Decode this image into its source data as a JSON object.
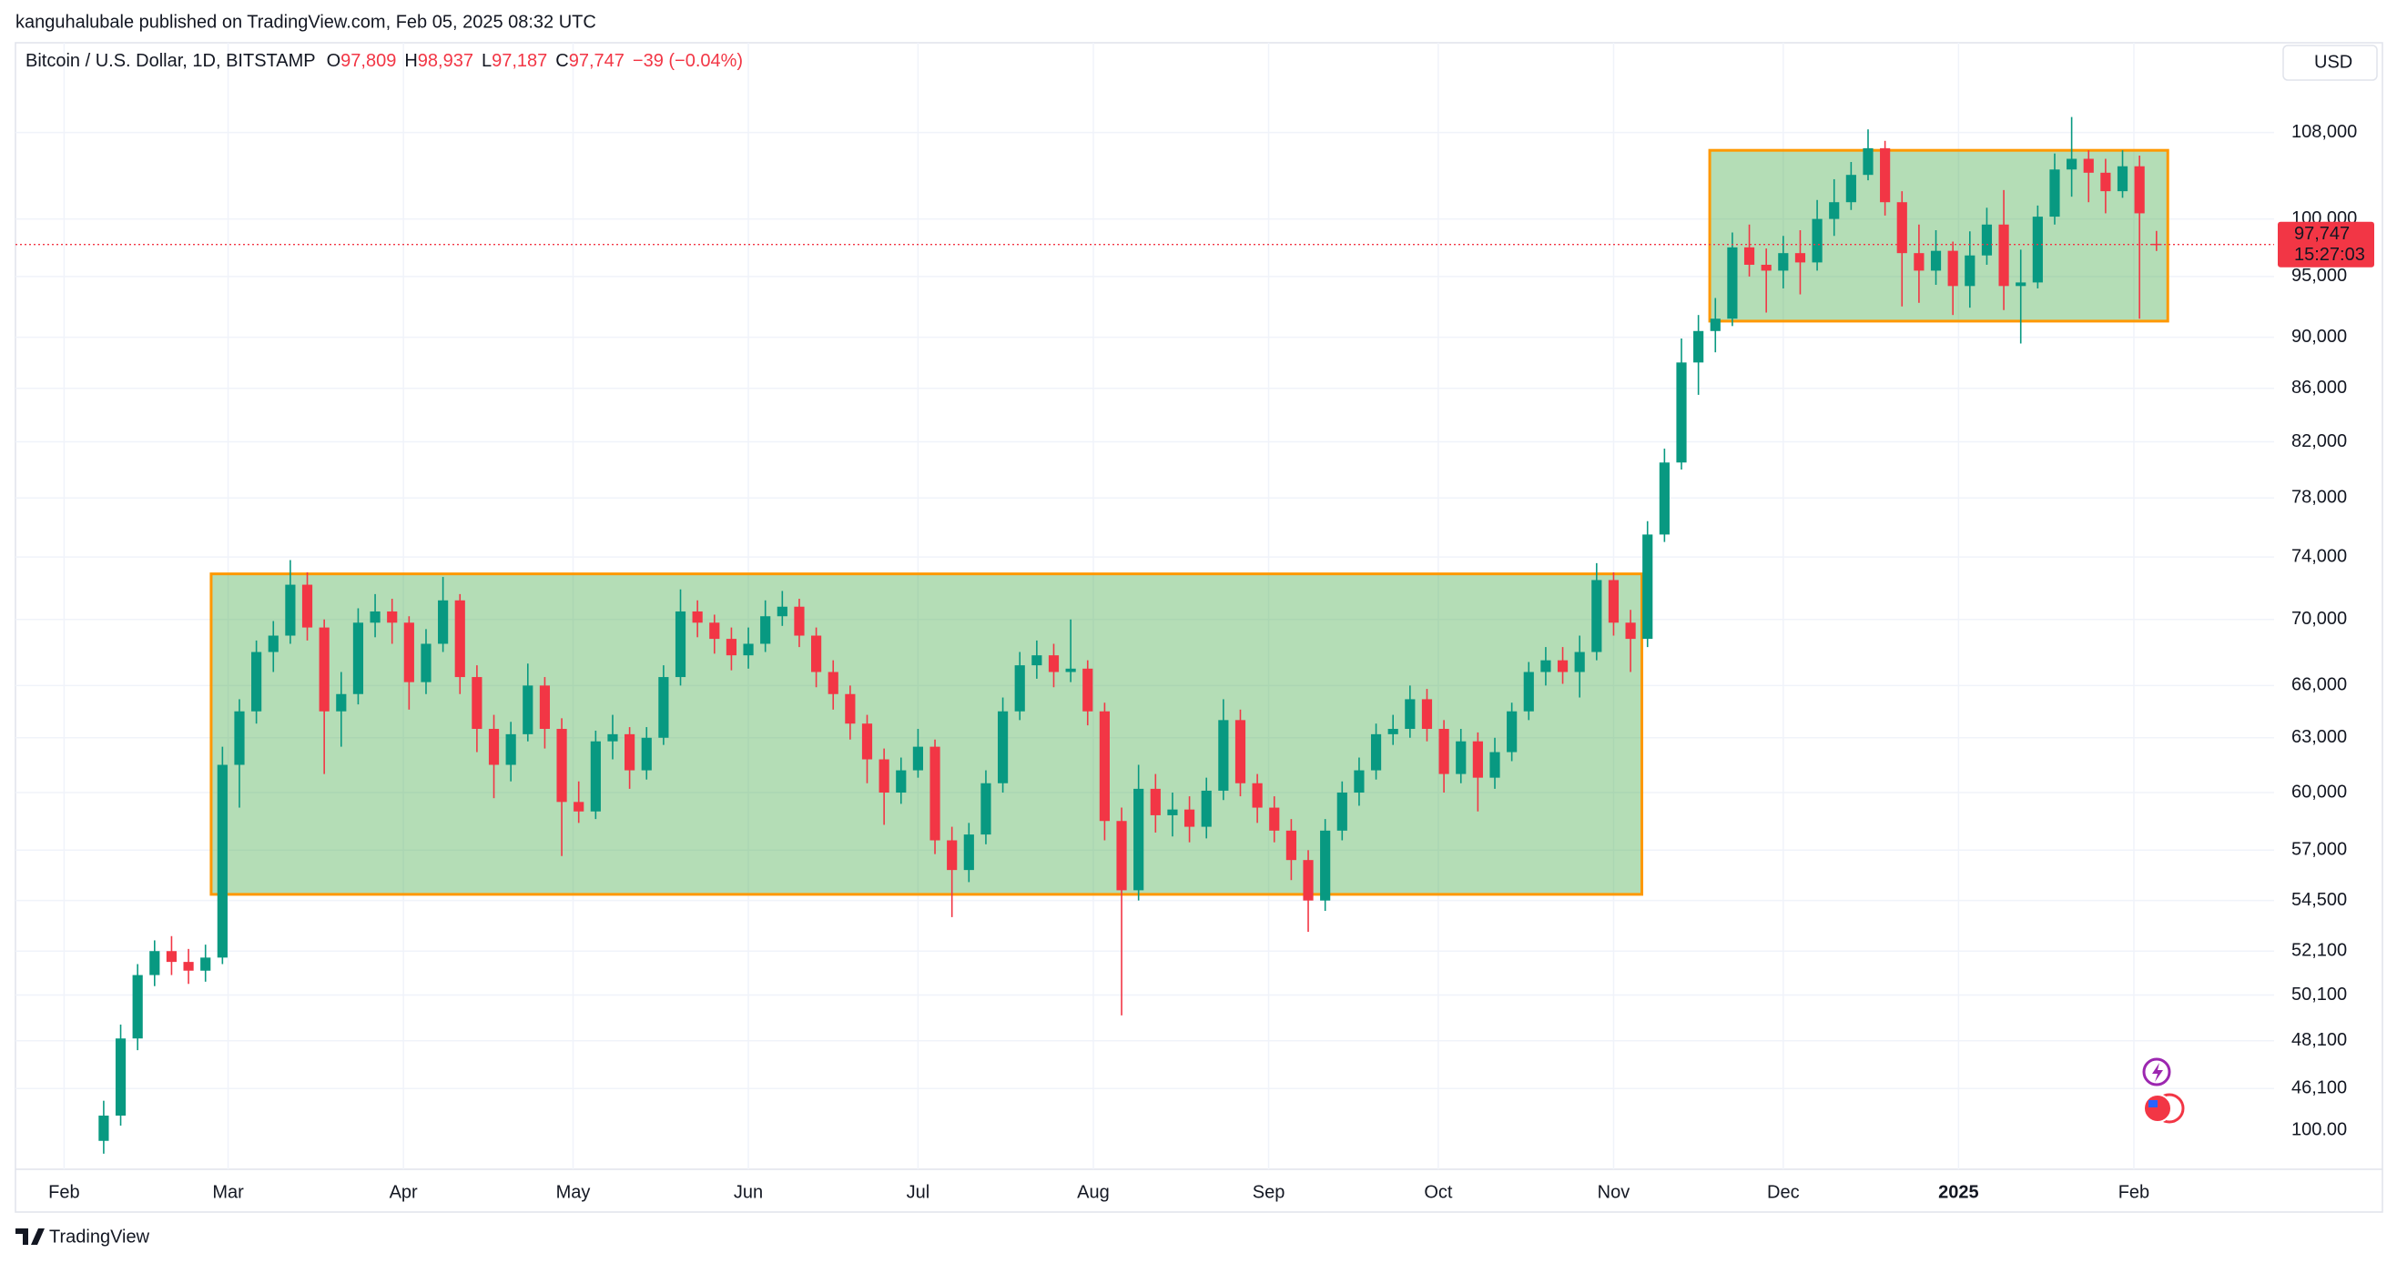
{
  "chart_data": {
    "type": "candlestick",
    "published": "kanguhalubale published on TradingView.com, Feb 05, 2025 08:32 UTC",
    "title": "Bitcoin / U.S. Dollar, 1D, BITSTAMP",
    "ohlc_legend": [
      {
        "key": "O",
        "value": "97,809"
      },
      {
        "key": "H",
        "value": "98,937"
      },
      {
        "key": "L",
        "value": "97,187"
      },
      {
        "key": "C",
        "value": "97,747"
      }
    ],
    "change": "−39 (−0.04%)",
    "currency": "USD",
    "brand": "TradingView",
    "log_scale": true,
    "grid": true,
    "up_color": "#089981",
    "down_color": "#f23645",
    "x": [
      7,
      10,
      13,
      16,
      19,
      22,
      25,
      28,
      31,
      34,
      37,
      40,
      43,
      46,
      49,
      52,
      55,
      58,
      61,
      64,
      67,
      70,
      73,
      76,
      79,
      82,
      85,
      88,
      91,
      94,
      97,
      100,
      103,
      106,
      109,
      112,
      115,
      118,
      121,
      124,
      127,
      130,
      133,
      136,
      139,
      142,
      145,
      148,
      151,
      154,
      157,
      160,
      163,
      166,
      169,
      172,
      175,
      178,
      181,
      184,
      187,
      190,
      193,
      196,
      199,
      202,
      205,
      208,
      211,
      214,
      217,
      220,
      223,
      226,
      229,
      232,
      235,
      238,
      241,
      244,
      247,
      250,
      253,
      256,
      259,
      262,
      265,
      268,
      271,
      274,
      277,
      280,
      283,
      286,
      289,
      292,
      295,
      298,
      301,
      304,
      307,
      310,
      313,
      316,
      319,
      322,
      325,
      328,
      331,
      334,
      337,
      340,
      343,
      346,
      349,
      352,
      355,
      358,
      361,
      364,
      367,
      370
    ],
    "ohlc": [
      [
        44000,
        45600,
        43500,
        45000
      ],
      [
        45000,
        48800,
        44600,
        48200
      ],
      [
        48200,
        51500,
        47700,
        51000
      ],
      [
        51000,
        52600,
        50500,
        52100
      ],
      [
        52100,
        52800,
        51000,
        51600
      ],
      [
        51600,
        52200,
        50600,
        51200
      ],
      [
        51200,
        52400,
        50700,
        51800
      ],
      [
        51800,
        62500,
        51500,
        61500
      ],
      [
        61500,
        65200,
        59200,
        64500
      ],
      [
        64500,
        68700,
        63800,
        68000
      ],
      [
        68000,
        69900,
        66800,
        69000
      ],
      [
        69000,
        73800,
        68500,
        72200
      ],
      [
        72200,
        73000,
        68700,
        69500
      ],
      [
        69500,
        70000,
        61000,
        64500
      ],
      [
        64500,
        66800,
        62500,
        65500
      ],
      [
        65500,
        70700,
        64900,
        69800
      ],
      [
        69800,
        71600,
        68900,
        70500
      ],
      [
        70500,
        71300,
        68500,
        69800
      ],
      [
        69800,
        70200,
        64600,
        66200
      ],
      [
        66200,
        69400,
        65500,
        68500
      ],
      [
        68500,
        72700,
        68000,
        71200
      ],
      [
        71200,
        71600,
        65500,
        66500
      ],
      [
        66500,
        67200,
        62200,
        63500
      ],
      [
        63500,
        64300,
        59700,
        61500
      ],
      [
        61500,
        63900,
        60600,
        63200
      ],
      [
        63200,
        67300,
        62800,
        66000
      ],
      [
        66000,
        66500,
        62400,
        63500
      ],
      [
        63500,
        64100,
        56700,
        59500
      ],
      [
        59500,
        60600,
        58400,
        59000
      ],
      [
        59000,
        63400,
        58600,
        62800
      ],
      [
        62800,
        64300,
        61800,
        63200
      ],
      [
        63200,
        63600,
        60200,
        61200
      ],
      [
        61200,
        63600,
        60700,
        63000
      ],
      [
        63000,
        67200,
        62600,
        66500
      ],
      [
        66500,
        71900,
        66000,
        70500
      ],
      [
        70500,
        71200,
        68900,
        69800
      ],
      [
        69800,
        70300,
        67900,
        68800
      ],
      [
        68800,
        69500,
        66900,
        67800
      ],
      [
        67800,
        69500,
        67000,
        68500
      ],
      [
        68500,
        71200,
        68000,
        70200
      ],
      [
        70200,
        71800,
        69600,
        70800
      ],
      [
        70800,
        71300,
        68300,
        69000
      ],
      [
        69000,
        69500,
        65900,
        66800
      ],
      [
        66800,
        67500,
        64600,
        65500
      ],
      [
        65500,
        66000,
        62900,
        63800
      ],
      [
        63800,
        64300,
        60500,
        61800
      ],
      [
        61800,
        62400,
        58300,
        60000
      ],
      [
        60000,
        61900,
        59400,
        61200
      ],
      [
        61200,
        63500,
        60800,
        62500
      ],
      [
        62500,
        62900,
        56800,
        57500
      ],
      [
        57500,
        58200,
        53700,
        56000
      ],
      [
        56000,
        58400,
        55400,
        57800
      ],
      [
        57800,
        61200,
        57300,
        60500
      ],
      [
        60500,
        65300,
        60000,
        64500
      ],
      [
        64500,
        68000,
        64000,
        67200
      ],
      [
        67200,
        68700,
        66400,
        67800
      ],
      [
        67800,
        68500,
        65900,
        66800
      ],
      [
        66800,
        70000,
        66200,
        67000
      ],
      [
        67000,
        67500,
        63700,
        64500
      ],
      [
        64500,
        65000,
        57500,
        58500
      ],
      [
        58500,
        59200,
        49200,
        55000
      ],
      [
        55000,
        61500,
        54500,
        60200
      ],
      [
        60200,
        61000,
        57900,
        58800
      ],
      [
        58800,
        60000,
        57700,
        59100
      ],
      [
        59100,
        59800,
        57400,
        58200
      ],
      [
        58200,
        60800,
        57600,
        60100
      ],
      [
        60100,
        65200,
        59600,
        64000
      ],
      [
        64000,
        64600,
        59800,
        60500
      ],
      [
        60500,
        61000,
        58400,
        59200
      ],
      [
        59200,
        59800,
        57400,
        58000
      ],
      [
        58000,
        58600,
        55500,
        56500
      ],
      [
        56500,
        57000,
        53000,
        54500
      ],
      [
        54500,
        58600,
        54000,
        58000
      ],
      [
        58000,
        60600,
        57500,
        60000
      ],
      [
        60000,
        61900,
        59300,
        61200
      ],
      [
        61200,
        63800,
        60700,
        63200
      ],
      [
        63200,
        64300,
        62600,
        63500
      ],
      [
        63500,
        66000,
        63000,
        65200
      ],
      [
        65200,
        65800,
        62800,
        63500
      ],
      [
        63500,
        64000,
        60000,
        61000
      ],
      [
        61000,
        63500,
        60500,
        62800
      ],
      [
        62800,
        63300,
        59000,
        60800
      ],
      [
        60800,
        63000,
        60200,
        62200
      ],
      [
        62200,
        65000,
        61700,
        64500
      ],
      [
        64500,
        67400,
        64000,
        66800
      ],
      [
        66800,
        68300,
        66000,
        67500
      ],
      [
        67500,
        68300,
        66100,
        66800
      ],
      [
        66800,
        69000,
        65300,
        68000
      ],
      [
        68000,
        73600,
        67500,
        72500
      ],
      [
        72500,
        73000,
        69000,
        69800
      ],
      [
        69800,
        70600,
        66800,
        68800
      ],
      [
        68800,
        76400,
        68300,
        75500
      ],
      [
        75500,
        81500,
        75000,
        80500
      ],
      [
        80500,
        89900,
        80000,
        88000
      ],
      [
        88000,
        91800,
        85500,
        90500
      ],
      [
        90500,
        93200,
        88800,
        91500
      ],
      [
        91500,
        98800,
        90900,
        97500
      ],
      [
        97500,
        99500,
        95000,
        96000
      ],
      [
        96000,
        97400,
        92000,
        95500
      ],
      [
        95500,
        98500,
        94000,
        97000
      ],
      [
        97000,
        99000,
        93500,
        96200
      ],
      [
        96200,
        101700,
        95500,
        100000
      ],
      [
        100000,
        103600,
        98500,
        101500
      ],
      [
        101500,
        105200,
        100800,
        104000
      ],
      [
        104000,
        108300,
        103500,
        106500
      ],
      [
        106500,
        107200,
        100300,
        101500
      ],
      [
        101500,
        102500,
        92500,
        97000
      ],
      [
        97000,
        99500,
        92800,
        95500
      ],
      [
        95500,
        99000,
        94300,
        97200
      ],
      [
        97200,
        98000,
        91800,
        94200
      ],
      [
        94200,
        98900,
        92400,
        96800
      ],
      [
        96800,
        101000,
        96000,
        99500
      ],
      [
        99500,
        102600,
        92200,
        94200
      ],
      [
        94200,
        97300,
        89500,
        94500
      ],
      [
        94500,
        101200,
        94000,
        100200
      ],
      [
        100200,
        106000,
        99500,
        104500
      ],
      [
        104500,
        109500,
        102000,
        105500
      ],
      [
        105500,
        106300,
        101500,
        104200
      ],
      [
        104200,
        105500,
        100500,
        102500
      ],
      [
        102500,
        106300,
        101900,
        104800
      ],
      [
        104800,
        105800,
        91500,
        100500
      ],
      [
        97809,
        98937,
        97187,
        97747
      ]
    ],
    "zones": [
      {
        "x": [
          26,
          279
        ],
        "y": [
          54800,
          72900
        ]
      },
      {
        "x": [
          291,
          372
        ],
        "y": [
          91300,
          106300
        ]
      }
    ],
    "zone_fill": "#4caf50",
    "zone_border": "#ff9800",
    "last_price": {
      "value": 97747,
      "label": "97,747",
      "countdown": "15:27:03"
    },
    "xlim": [
      -8.6,
      390.8
    ],
    "xticks": [
      {
        "value": 0,
        "label": "Feb"
      },
      {
        "value": 29,
        "label": "Mar"
      },
      {
        "value": 60,
        "label": "Apr"
      },
      {
        "value": 90,
        "label": "May"
      },
      {
        "value": 121,
        "label": "Jun"
      },
      {
        "value": 151,
        "label": "Jul"
      },
      {
        "value": 182,
        "label": "Aug"
      },
      {
        "value": 213,
        "label": "Sep"
      },
      {
        "value": 243,
        "label": "Oct"
      },
      {
        "value": 274,
        "label": "Nov"
      },
      {
        "value": 304,
        "label": "Dec"
      },
      {
        "value": 335,
        "label": "2025"
      },
      {
        "value": 366,
        "label": "Feb"
      }
    ],
    "ylim": [
      42900,
      116700
    ],
    "yticks": [
      {
        "value": 46100,
        "label": "46,100"
      },
      {
        "value": 48100,
        "label": "48,100"
      },
      {
        "value": 50100,
        "label": "50,100"
      },
      {
        "value": 52100,
        "label": "52,100"
      },
      {
        "value": 54500,
        "label": "54,500"
      },
      {
        "value": 57000,
        "label": "57,000"
      },
      {
        "value": 60000,
        "label": "60,000"
      },
      {
        "value": 63000,
        "label": "63,000"
      },
      {
        "value": 66000,
        "label": "66,000"
      },
      {
        "value": 70000,
        "label": "70,000"
      },
      {
        "value": 74000,
        "label": "74,000"
      },
      {
        "value": 78000,
        "label": "78,000"
      },
      {
        "value": 82000,
        "label": "82,000"
      },
      {
        "value": 86000,
        "label": "86,000"
      },
      {
        "value": 90000,
        "label": "90,000"
      },
      {
        "value": 95000,
        "label": "95,000"
      },
      {
        "value": 100000,
        "label": "100,000"
      },
      {
        "value": 108000,
        "label": "108,000"
      }
    ],
    "percent_scale_label": "100.00"
  }
}
